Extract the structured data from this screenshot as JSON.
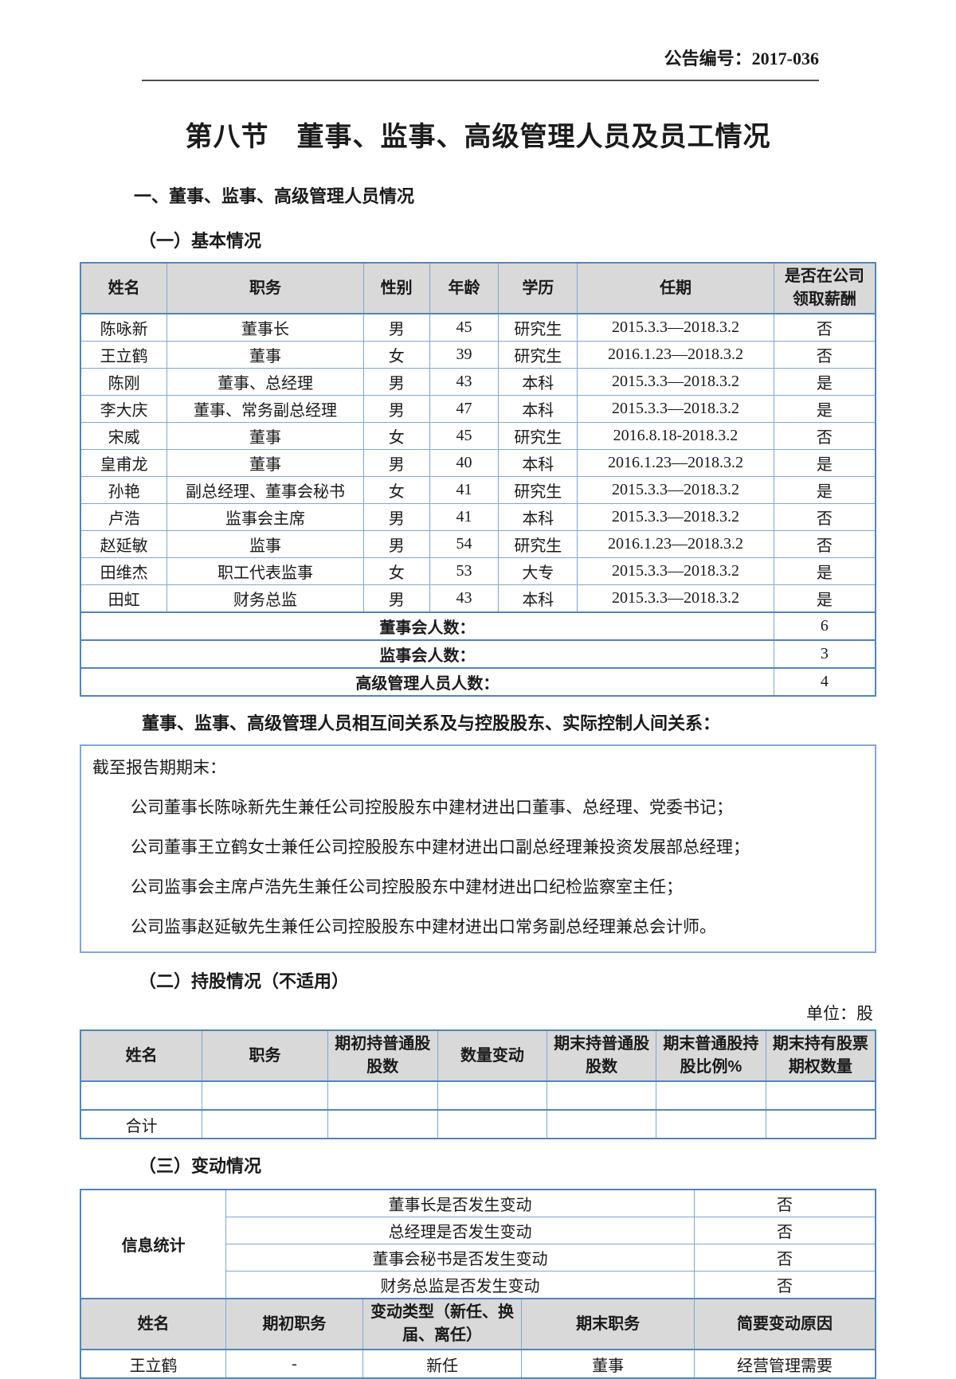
{
  "colors": {
    "table_border_blue": "#7fa8d2",
    "table_border_thick_blue": "#5585b5",
    "header_cell_gray": "#d9d9d9",
    "header_rule_gray": "#4d4d4d",
    "text_black": "#1a1a1a"
  },
  "page": {
    "announcement_no": "公告编号：2017-036",
    "title": "第八节　董事、监事、高级管理人员及员工情况",
    "section1": "一、董事、监事、高级管理人员情况",
    "sub1": "（一）基本情况",
    "relations_heading": "董事、监事、高级管理人员相互间关系及与控股股东、实际控制人间关系：",
    "sub2": "（二）持股情况（不适用）",
    "unit_label": "单位：股",
    "sub3": "（三）变动情况"
  },
  "basic_table": {
    "headers": [
      "姓名",
      "职务",
      "性别",
      "年龄",
      "学历",
      "任期",
      "是否在公司领取薪酬"
    ],
    "rows": [
      [
        "陈咏新",
        "董事长",
        "男",
        "45",
        "研究生",
        "2015.3.3—2018.3.2",
        "否"
      ],
      [
        "王立鹤",
        "董事",
        "女",
        "39",
        "研究生",
        "2016.1.23—2018.3.2",
        "否"
      ],
      [
        "陈刚",
        "董事、总经理",
        "男",
        "43",
        "本科",
        "2015.3.3—2018.3.2",
        "是"
      ],
      [
        "李大庆",
        "董事、常务副总经理",
        "男",
        "47",
        "本科",
        "2015.3.3—2018.3.2",
        "是"
      ],
      [
        "宋威",
        "董事",
        "女",
        "45",
        "研究生",
        "2016.8.18-2018.3.2",
        "否"
      ],
      [
        "皇甫龙",
        "董事",
        "男",
        "40",
        "本科",
        "2016.1.23—2018.3.2",
        "是"
      ],
      [
        "孙艳",
        "副总经理、董事会秘书",
        "女",
        "41",
        "研究生",
        "2015.3.3—2018.3.2",
        "是"
      ],
      [
        "卢浩",
        "监事会主席",
        "男",
        "41",
        "本科",
        "2015.3.3—2018.3.2",
        "否"
      ],
      [
        "赵延敏",
        "监事",
        "男",
        "54",
        "研究生",
        "2016.1.23—2018.3.2",
        "否"
      ],
      [
        "田维杰",
        "职工代表监事",
        "女",
        "53",
        "大专",
        "2015.3.3—2018.3.2",
        "是"
      ],
      [
        "田虹",
        "财务总监",
        "男",
        "43",
        "本科",
        "2015.3.3—2018.3.2",
        "是"
      ]
    ],
    "summary": [
      {
        "label": "董事会人数：",
        "value": "6"
      },
      {
        "label": "监事会人数：",
        "value": "3"
      },
      {
        "label": "高级管理人员人数：",
        "value": "4"
      }
    ]
  },
  "relations_box": {
    "intro": "截至报告期期末：",
    "paragraphs": [
      "公司董事长陈咏新先生兼任公司控股股东中建材进出口董事、总经理、党委书记；",
      "公司董事王立鹤女士兼任公司控股股东中建材进出口副总经理兼投资发展部总经理；",
      "公司监事会主席卢浩先生兼任公司控股股东中建材进出口纪检监察室主任；",
      "公司监事赵延敏先生兼任公司控股股东中建材进出口常务副总经理兼总会计师。"
    ]
  },
  "holdings_table": {
    "headers": [
      "姓名",
      "职务",
      "期初持普通股股数",
      "数量变动",
      "期末持普通股股数",
      "期末普通股持股比例%",
      "期末持有股票期权数量"
    ],
    "empty_row": [
      "",
      "",
      "",
      "",
      "",
      "",
      ""
    ],
    "total_label": "合计"
  },
  "changes_table": {
    "info_stat_label": "信息统计",
    "questions": [
      {
        "q": "董事长是否发生变动",
        "a": "否"
      },
      {
        "q": "总经理是否发生变动",
        "a": "否"
      },
      {
        "q": "董事会秘书是否发生变动",
        "a": "否"
      },
      {
        "q": "财务总监是否发生变动",
        "a": "否"
      }
    ],
    "headers": [
      "姓名",
      "期初职务",
      "变动类型（新任、换届、离任）",
      "期末职务",
      "简要变动原因"
    ],
    "rows": [
      [
        "王立鹤",
        "-",
        "新任",
        "董事",
        "经营管理需要"
      ]
    ]
  }
}
